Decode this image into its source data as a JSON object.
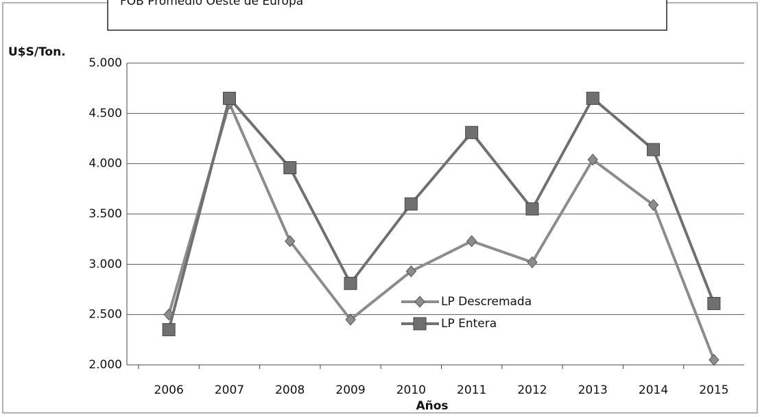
{
  "chart_data": {
    "type": "line",
    "title": "FOB Promedio Oeste de Europa",
    "y_label": "U$S/Ton.",
    "x_label": "Años",
    "categories": [
      "2006",
      "2007",
      "2008",
      "2009",
      "2010",
      "2011",
      "2012",
      "2013",
      "2014",
      "2015"
    ],
    "series": [
      {
        "name": "LP Descremada",
        "color": "#8c8c8c",
        "marker": "diamond",
        "values": [
          2500,
          4600,
          3230,
          2450,
          2930,
          3230,
          3020,
          4040,
          3590,
          2050
        ]
      },
      {
        "name": "LP Entera",
        "color": "#707070",
        "marker": "square",
        "values": [
          2350,
          4650,
          3960,
          2810,
          3600,
          4310,
          3550,
          4650,
          4140,
          2610
        ]
      }
    ],
    "ylim": [
      2000,
      5000
    ],
    "yticks": [
      {
        "value": 2000,
        "label": "2.000"
      },
      {
        "value": 2500,
        "label": "2.500"
      },
      {
        "value": 3000,
        "label": "3.000"
      },
      {
        "value": 3500,
        "label": "3.500"
      },
      {
        "value": 4000,
        "label": "4.000"
      },
      {
        "value": 4500,
        "label": "4.500"
      },
      {
        "value": 5000,
        "label": "5.000"
      }
    ],
    "grid": true
  }
}
